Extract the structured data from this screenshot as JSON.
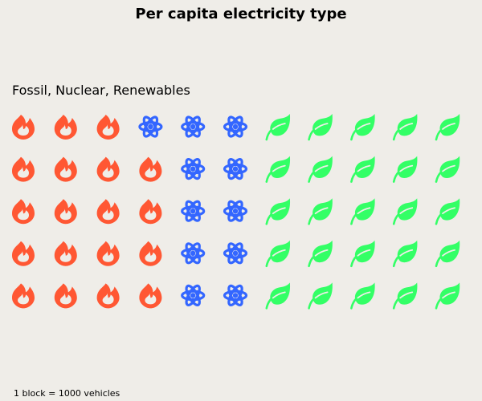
{
  "chart_data": {
    "type": "waffle",
    "title": "Per capita electricity type",
    "subtitle": "Fossil, Nuclear, Renewables",
    "note": "1 block = 1000 vehicles",
    "rows": 5,
    "columns": 11,
    "fill_order": "column-major, bottom-to-top",
    "categories": [
      {
        "key": "fossil",
        "value": 19,
        "color": "#ff5733",
        "icon": "fire-icon"
      },
      {
        "key": "nuclear",
        "value": 11,
        "color": "#3366ff",
        "icon": "atom-icon"
      },
      {
        "key": "renewables",
        "value": 25,
        "color": "#33ff66",
        "icon": "leaf-icon"
      }
    ]
  }
}
